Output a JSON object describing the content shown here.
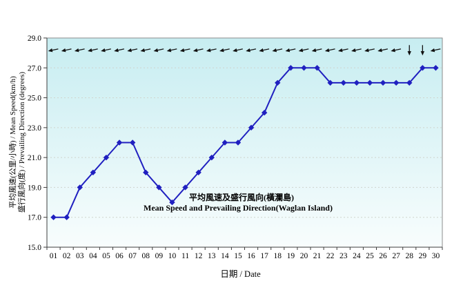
{
  "chart_data": {
    "type": "line",
    "title_zh": "平均風速及盛行風向(橫瀾島)",
    "title_en": "Mean Speed and Prevailing Direction(Waglan Island)",
    "xlabel": "日期 / Date",
    "ylabel_line1": "平均風速(公里/小時) / Mean Speed(km/h)",
    "ylabel_line2": "盛行風向(度) / Prevailing Direction (degrees)",
    "categories": [
      "01",
      "02",
      "03",
      "04",
      "05",
      "06",
      "07",
      "08",
      "09",
      "10",
      "11",
      "12",
      "13",
      "14",
      "15",
      "16",
      "17",
      "18",
      "19",
      "20",
      "21",
      "22",
      "23",
      "24",
      "25",
      "26",
      "27",
      "28",
      "29",
      "30"
    ],
    "values": [
      17.0,
      17.0,
      19.0,
      20.0,
      21.0,
      22.0,
      22.0,
      20.0,
      19.0,
      18.0,
      19.0,
      20.0,
      21.0,
      22.0,
      22.0,
      23.0,
      24.0,
      26.0,
      27.0,
      27.0,
      27.0,
      26.0,
      26.0,
      26.0,
      26.0,
      26.0,
      26.0,
      26.0,
      27.0,
      27.0
    ],
    "ylim": [
      15.0,
      29.0
    ],
    "yticks": [
      15,
      17,
      19,
      21,
      23,
      25,
      27,
      29
    ],
    "ytick_labels": [
      "15.0",
      "17.0",
      "19.0",
      "21.0",
      "23.0",
      "25.0",
      "27.0",
      "29.0"
    ],
    "grid": "horizontal-dashed",
    "legend": "none",
    "wind_arrows": {
      "plot_level": 28.2,
      "wind_from": [
        "E",
        "E",
        "E",
        "E",
        "E",
        "E",
        "E",
        "E",
        "E",
        "E",
        "E",
        "E",
        "E",
        "E",
        "E",
        "E",
        "E",
        "E",
        "E",
        "E",
        "E",
        "E",
        "E",
        "E",
        "E",
        "E",
        "E",
        "N",
        "N",
        "E"
      ]
    },
    "colors": {
      "series": "#2020c0",
      "title": "#8b2525",
      "plot_bg_top": "#c7edf1",
      "plot_bg_bottom": "#f8fdfd",
      "gridline": "#cfd4cc",
      "frame": "#8c8c8c",
      "axis": "#3c3c3c",
      "arrow": "#111111",
      "tick_text": "#000000"
    }
  }
}
